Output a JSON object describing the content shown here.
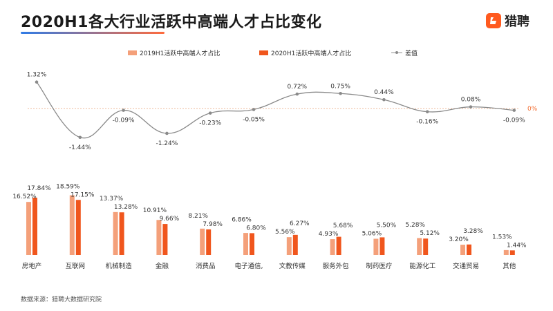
{
  "header": {
    "title": "2020H1各大行业活跃中高端人才占比变化",
    "logo_text": "猎聘",
    "logo_icon": "liepin-logo-icon"
  },
  "footer": {
    "source": "数据来源：猎聘大数据研究院"
  },
  "colors": {
    "series_2019": "#f4a07a",
    "series_2020": "#f0561d",
    "diff_line": "#8a8a8a",
    "zero_line": "#e8a27a",
    "zero_label": "#f26b2e"
  },
  "chart_data": [
    {
      "type": "line",
      "series": [
        {
          "name": "差值",
          "values": [
            1.32,
            -1.44,
            -0.09,
            -1.24,
            -0.23,
            -0.05,
            0.72,
            0.75,
            0.44,
            -0.16,
            0.08,
            -0.09
          ]
        }
      ],
      "data_labels": [
        "1.32%",
        "-1.44%",
        "-0.09%",
        "-1.24%",
        "-0.23%",
        "-0.05%",
        "0.72%",
        "0.75%",
        "0.44%",
        "-0.16%",
        "0.08%",
        "-0.09%"
      ],
      "reference_line": {
        "value": 0,
        "label": "0%"
      }
    },
    {
      "type": "bar",
      "categories": [
        "房地产",
        "互联网",
        "机械制造",
        "金融",
        "消费品",
        "电子通信",
        "文教传媒",
        "服务外包",
        "制药医疗",
        "能源化工",
        "交通贸易",
        "其他"
      ],
      "series": [
        {
          "name": "2019H1活跃中高端人才占比",
          "values": [
            16.52,
            18.59,
            13.37,
            10.91,
            8.21,
            6.86,
            5.56,
            4.93,
            5.06,
            5.28,
            3.2,
            1.53
          ],
          "labels": [
            "16.52%",
            "18.59%",
            "13.37%",
            "10.91%",
            "8.21%",
            "6.86%",
            "5.56%",
            "4.93%",
            "5.06%",
            "5.28%",
            "3.20%",
            "1.53%"
          ]
        },
        {
          "name": "2020H1活跃中高端人才占比",
          "values": [
            17.84,
            17.15,
            13.28,
            9.66,
            7.98,
            6.8,
            6.27,
            5.68,
            5.5,
            5.12,
            3.28,
            1.44
          ],
          "labels": [
            "17.84%",
            "17.15%",
            "13.28%",
            "9.66%",
            "7.98%",
            "6.80%",
            "6.27%",
            "5.68%",
            "5.50%",
            "5.12%",
            "3.28%",
            "1.44%"
          ]
        }
      ],
      "category_labels": [
        "房地产",
        "互联网",
        "机械制造",
        "金融",
        "消费品",
        "电子通信,",
        "文教传媒",
        "服务外包",
        "制药医疗",
        "能源化工",
        "交通贸易",
        "其他"
      ],
      "legend": "top"
    }
  ]
}
